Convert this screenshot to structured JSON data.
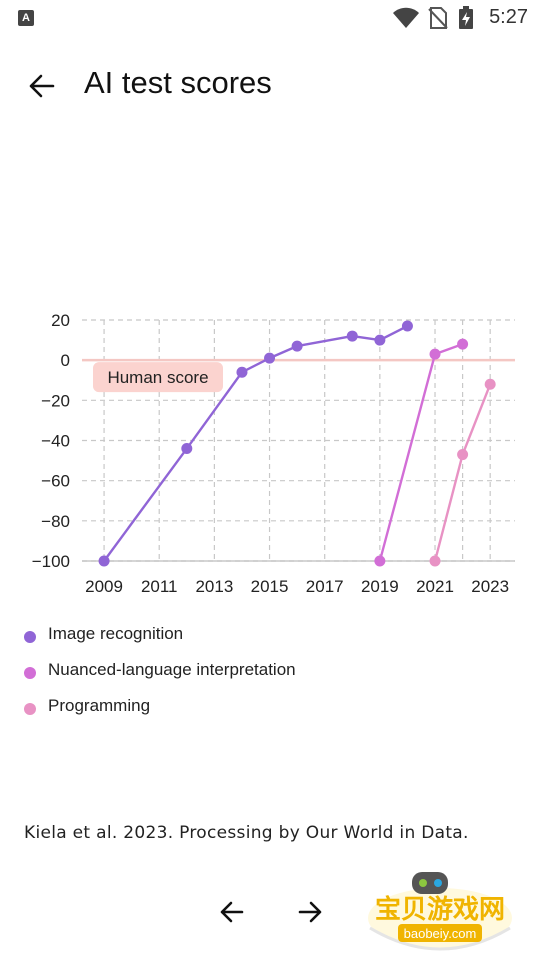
{
  "status_bar": {
    "app_icon_letter": "A",
    "time": "5:27",
    "icons": [
      "wifi-icon",
      "no-sim-icon",
      "battery-charging-icon"
    ]
  },
  "toolbar": {
    "back_icon": "arrow-left-icon",
    "title": "AI test scores"
  },
  "chart_data": {
    "type": "line",
    "title": "",
    "xlabel": "",
    "ylabel": "",
    "xlim": [
      2008.2,
      2023.9
    ],
    "ylim": [
      -100,
      20
    ],
    "x_ticks": [
      2009,
      2011,
      2013,
      2015,
      2017,
      2019,
      2021,
      2023
    ],
    "y_ticks": [
      20,
      0,
      -20,
      -40,
      -60,
      -80,
      -100
    ],
    "y_tick_labels": [
      "20",
      "0",
      "−20",
      "−40",
      "−60",
      "−80",
      "−100"
    ],
    "x_grid_extra": [
      2022
    ],
    "grid": true,
    "reference_line": {
      "y": 0,
      "label": "Human score",
      "color": "#f4c7c3"
    },
    "series": [
      {
        "name": "Image recognition",
        "color": "#9065d6",
        "points": [
          [
            2009,
            -100
          ],
          [
            2012,
            -44
          ],
          [
            2014,
            -6
          ],
          [
            2015,
            1
          ],
          [
            2016,
            7
          ],
          [
            2018,
            12
          ],
          [
            2019,
            10
          ],
          [
            2020,
            17
          ]
        ]
      },
      {
        "name": "Nuanced-language interpretation",
        "color": "#d26ed6",
        "points": [
          [
            2019,
            -100
          ],
          [
            2021,
            3
          ],
          [
            2022,
            8
          ]
        ]
      },
      {
        "name": "Programming",
        "color": "#e892c4",
        "points": [
          [
            2021,
            -100
          ],
          [
            2022,
            -47
          ],
          [
            2023,
            -12
          ]
        ]
      }
    ],
    "legend_placement": "bottom"
  },
  "source_text": "Kiela et al. 2023. Processing by Our World in Data.",
  "bottom_nav": {
    "prev_icon": "arrow-left-icon",
    "next_icon": "arrow-right-icon"
  },
  "watermark": {
    "text": "宝贝游戏网",
    "url": "baobeiy.com"
  }
}
